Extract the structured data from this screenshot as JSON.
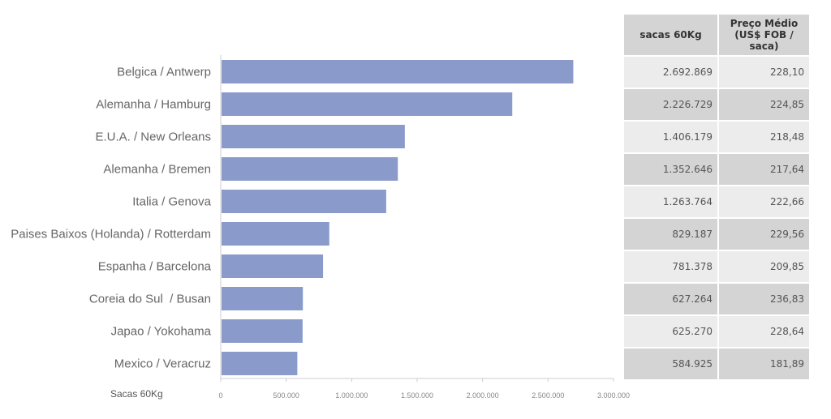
{
  "chart_data": {
    "type": "bar",
    "orientation": "horizontal",
    "categories": [
      "Belgica / Antwerp",
      "Alemanha / Hamburg",
      "E.U.A. / New Orleans",
      "Alemanha / Bremen",
      "Italia / Genova",
      "Paises Baixos (Holanda) / Rotterdam",
      "Espanha / Barcelona",
      "Coreia do Sul  / Busan",
      "Japao / Yokohama",
      "Mexico / Veracruz"
    ],
    "values": [
      2692869,
      2226729,
      1406179,
      1352646,
      1263764,
      829187,
      781378,
      627264,
      625270,
      584925
    ],
    "xlabel": "Sacas 60Kg",
    "xlim": [
      0,
      3000000
    ],
    "xticks": [
      0,
      500000,
      1000000,
      1500000,
      2000000,
      2500000,
      3000000
    ],
    "xtick_labels": [
      "0",
      "500.000",
      "1.000.000",
      "1.500.000",
      "2.000.000",
      "2.500.000",
      "3.000.000"
    ],
    "bar_color": "#8a9bcb",
    "grid": false
  },
  "table": {
    "headers": [
      "sacas 60Kg",
      "Preço Médio",
      "(US$ FOB / saca)"
    ],
    "rows": [
      [
        "2.692.869",
        "228,10"
      ],
      [
        "2.226.729",
        "224,85"
      ],
      [
        "1.406.179",
        "218,48"
      ],
      [
        "1.352.646",
        "217,64"
      ],
      [
        "1.263.764",
        "222,66"
      ],
      [
        "829.187",
        "229,56"
      ],
      [
        "781.378",
        "209,85"
      ],
      [
        "627.264",
        "236,83"
      ],
      [
        "625.270",
        "228,64"
      ],
      [
        "584.925",
        "181,89"
      ]
    ]
  }
}
